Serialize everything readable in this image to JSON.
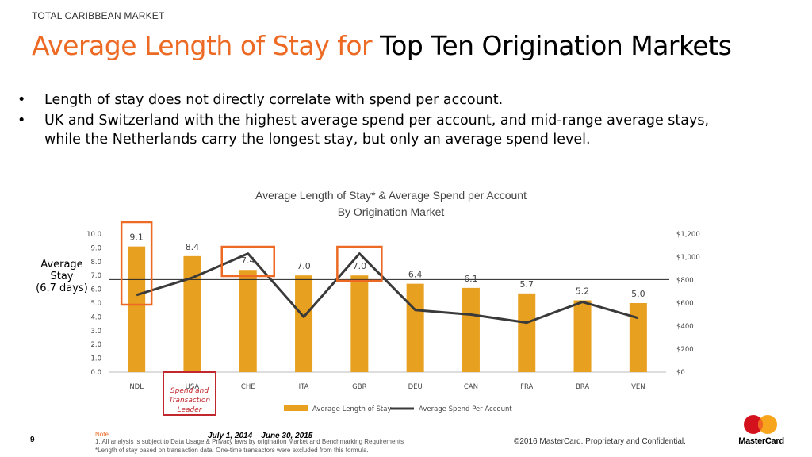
{
  "header": {
    "section_label": "TOTAL CARIBBEAN MARKET",
    "title_orange": "Average Length of Stay for",
    "title_black": "Top Ten Origination Markets"
  },
  "bullets": [
    "Length of stay does not directly correlate with spend per account.",
    "UK and Switzerland with the highest average spend per account, and mid-range average stays, while the Netherlands carry the longest stay, but only an average spend level."
  ],
  "bullet_symbol": "•",
  "annotations": {
    "average_stay": [
      "Average",
      "Stay",
      "(6.7 days)"
    ],
    "average_stay_value": 6.7,
    "leader_label": [
      "Spend and",
      "Transaction",
      "Leader"
    ],
    "highlighted_categories": [
      "NDL",
      "CHE",
      "GBR"
    ],
    "leader_category": "USA",
    "highlight_color": "#ec6a23",
    "leader_color": "#c0282e"
  },
  "chart_data": {
    "type": "bar",
    "title": "Average Length of Stay* & Average Spend per Account",
    "subtitle": "By Origination Market",
    "categories": [
      "NDL",
      "USA",
      "CHE",
      "ITA",
      "GBR",
      "DEU",
      "CAN",
      "FRA",
      "BRA",
      "VEN"
    ],
    "series": [
      {
        "name": "Average Length of Stay",
        "kind": "bar",
        "axis": "left",
        "color": "#e8a020",
        "values": [
          9.1,
          8.4,
          7.4,
          7.0,
          7.0,
          6.4,
          6.1,
          5.7,
          5.2,
          5.0
        ],
        "labels": [
          "9.1",
          "8.4",
          "7.4",
          "7.0",
          "7.0",
          "6.4",
          "6.1",
          "5.7",
          "5.2",
          "5.0"
        ]
      },
      {
        "name": "Average Spend Per Account",
        "kind": "line",
        "axis": "right",
        "color": "#3a3a3a",
        "values": [
          670,
          820,
          1030,
          480,
          1030,
          540,
          500,
          430,
          610,
          470
        ]
      }
    ],
    "y_left": {
      "ylim": [
        0,
        10
      ],
      "ticks": [
        0,
        1,
        2,
        3,
        4,
        5,
        6,
        7,
        8,
        9,
        10
      ],
      "tick_labels": [
        "0.0",
        "1.0",
        "2.0",
        "3.0",
        "4.0",
        "5.0",
        "6.0",
        "7.0",
        "8.0",
        "9.0",
        "10.0"
      ]
    },
    "y_right": {
      "ylim": [
        0,
        1200
      ],
      "ticks": [
        0,
        200,
        400,
        600,
        800,
        1000,
        1200
      ],
      "tick_labels": [
        "$0",
        "$200",
        "$400",
        "$600",
        "$800",
        "$1,000",
        "$1,200"
      ]
    },
    "grid": false,
    "legend": "bottom"
  },
  "footer": {
    "page_number": "9",
    "date_range": "July 1, 2014 – June 30, 2015",
    "note_title": "Note",
    "note_line1": "1. All analysis is subject to Data Usage & Privacy laws by origination Market and Benchmarking Requirements",
    "note_line2": "*Length of stay based on transaction data. One-time transactors were excluded from this formula.",
    "copyright": "©2016 MasterCard. Proprietary and Confidential.",
    "logo_text": "MasterCard"
  }
}
